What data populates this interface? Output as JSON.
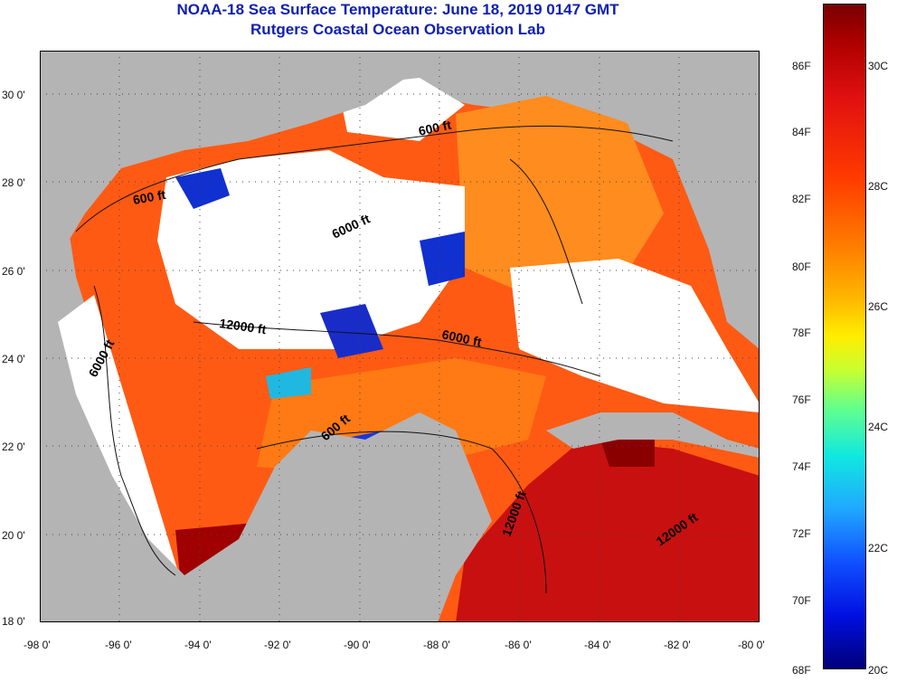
{
  "title": {
    "line1": "NOAA-18 Sea Surface Temperature:  June 18, 2019 0147 GMT",
    "line2": "Rutgers Coastal Ocean Observation Lab"
  },
  "map": {
    "lon_ticks": [
      "-98 0'",
      "-96 0'",
      "-94 0'",
      "-92 0'",
      "-90 0'",
      "-88 0'",
      "-86 0'",
      "-84 0'",
      "-82 0'",
      "-80 0'"
    ],
    "lat_ticks": [
      "30 0'",
      "28 0'",
      "26 0'",
      "24 0'",
      "22 0'",
      "20 0'",
      "18 0'"
    ],
    "lon_range": [
      -98,
      -80
    ],
    "lat_range": [
      18,
      31
    ],
    "contour_labels": [
      "600 ft",
      "600 ft",
      "6000 ft",
      "12000 ft",
      "6000 ft",
      "6000 ft",
      "600 ft",
      "12000 ft",
      "12000 ft"
    ],
    "colors": {
      "land": "#b4b4b4",
      "cloud": "#ffffff",
      "warm": "#ff5010",
      "hot": "#a00000",
      "cool": "#1030d0"
    }
  },
  "colorbar": {
    "fahrenheit": [
      "86F",
      "84F",
      "82F",
      "80F",
      "78F",
      "76F",
      "74F",
      "72F",
      "70F",
      "68F"
    ],
    "celsius": [
      "30C",
      "28C",
      "26C",
      "24C",
      "22C",
      "20C"
    ]
  }
}
